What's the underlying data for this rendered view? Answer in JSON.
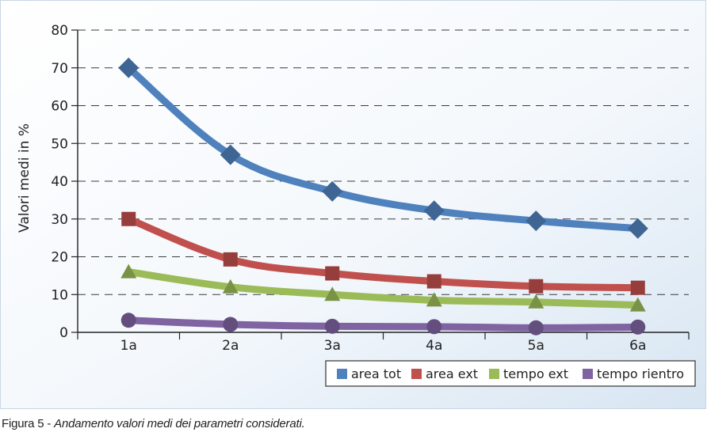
{
  "chart_data": {
    "type": "line",
    "categories": [
      "1a",
      "2a",
      "3a",
      "4a",
      "5a",
      "6a"
    ],
    "ylabel": "Valori medi in %",
    "ylim": [
      0,
      80
    ],
    "yticks": [
      0,
      10,
      20,
      30,
      40,
      50,
      60,
      70,
      80
    ],
    "grid": "horizontal-dashed",
    "legend_position": "bottom-right",
    "series": [
      {
        "name": "area tot",
        "values": [
          70,
          47,
          37.3,
          32.2,
          29.5,
          27.5
        ],
        "color": "#4f81bd",
        "marker": "diamond"
      },
      {
        "name": "area ext",
        "values": [
          30,
          19.3,
          15.6,
          13.5,
          12.2,
          11.8
        ],
        "color": "#c0504d",
        "marker": "square"
      },
      {
        "name": "tempo ext",
        "values": [
          16,
          12,
          10,
          8.5,
          8,
          7.2
        ],
        "color": "#9bbb59",
        "marker": "triangle"
      },
      {
        "name": "tempo rientro",
        "values": [
          3.2,
          2.1,
          1.6,
          1.5,
          1.2,
          1.4
        ],
        "color": "#8064a2",
        "marker": "circle"
      }
    ]
  },
  "caption": {
    "label": "Figura 5 - ",
    "text": "Andamento valori medi dei parametri considerati."
  }
}
